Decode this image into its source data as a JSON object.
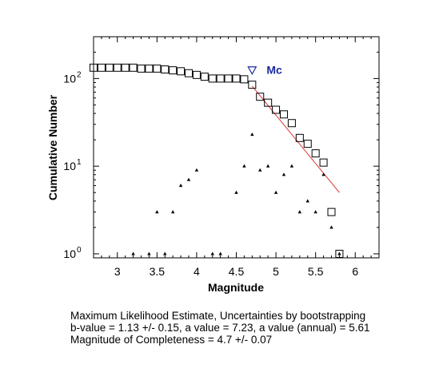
{
  "chart_data": {
    "type": "scatter",
    "xlabel": "Magnitude",
    "ylabel": "Cumulative Number",
    "xlim": [
      2.7,
      6.3
    ],
    "ylim": [
      0.9,
      300
    ],
    "yscale": "log",
    "xticks": [
      "3",
      "3.5",
      "4",
      "4.5",
      "5",
      "5.5",
      "6"
    ],
    "yticks": [
      "10",
      "10",
      "10"
    ],
    "ytick_exponents": [
      "0",
      "1",
      "2"
    ],
    "grid": false,
    "series": [
      {
        "marker": "square",
        "x": [
          2.7,
          2.8,
          2.9,
          3.0,
          3.1,
          3.2,
          3.3,
          3.4,
          3.5,
          3.6,
          3.7,
          3.8,
          3.9,
          4.0,
          4.1,
          4.2,
          4.3,
          4.4,
          4.5,
          4.6,
          4.7,
          4.8,
          4.9,
          5.0,
          5.1,
          5.2,
          5.3,
          5.4,
          5.5,
          5.6,
          5.7,
          5.8
        ],
        "y": [
          133,
          133,
          133,
          133,
          133,
          133,
          130,
          130,
          130,
          127,
          124,
          121,
          115,
          110,
          105,
          100,
          100,
          100,
          100,
          98,
          85,
          62,
          53,
          44,
          39,
          31,
          21,
          18,
          14,
          11,
          3,
          1
        ]
      },
      {
        "marker": "triangle",
        "x": [
          3.2,
          3.4,
          3.5,
          3.6,
          3.7,
          3.8,
          3.9,
          4.0,
          4.2,
          4.3,
          4.5,
          4.6,
          4.7,
          4.8,
          4.9,
          5.0,
          5.1,
          5.2,
          5.3,
          5.4,
          5.5,
          5.6,
          5.7,
          5.8
        ],
        "y": [
          1,
          1,
          3,
          1,
          3,
          6,
          7,
          9,
          1,
          1,
          5,
          10,
          23,
          9,
          10,
          5,
          8,
          10,
          3,
          4,
          3,
          8,
          2,
          1
        ]
      }
    ],
    "fit_line": {
      "x": [
        4.7,
        5.8
      ],
      "y": [
        82,
        5
      ]
    },
    "mc": {
      "x": 4.7,
      "y": 125,
      "label": "Mc"
    },
    "colors": {
      "fit": "#e03030",
      "mc": "#1a2aa0",
      "marker": "#000000"
    }
  },
  "caption": {
    "line1": "Maximum Likelihood Estimate, Uncertainties by bootstrapping",
    "line2": "b-value = 1.13 +/- 0.15,  a value = 7.23,  a value (annual) = 5.61",
    "line3": "Magnitude of Completeness = 4.7 +/- 0.07"
  }
}
